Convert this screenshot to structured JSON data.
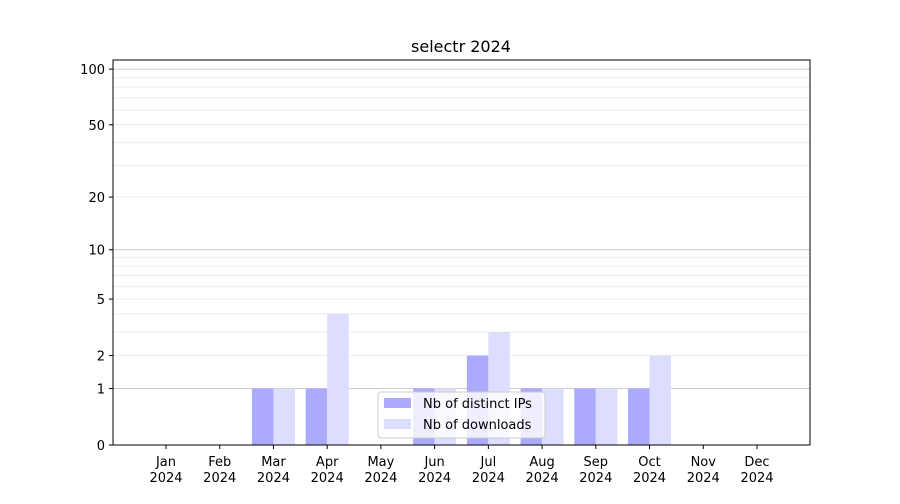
{
  "chart_data": {
    "type": "bar",
    "title": "selectr 2024",
    "xlabel": "",
    "ylabel": "",
    "yscale": "symlog (log10(1+y))",
    "ylim": [
      0,
      112
    ],
    "yticks": [
      0,
      1,
      2,
      5,
      10,
      20,
      50,
      100
    ],
    "grid": true,
    "legend_placement": "bottom-center",
    "categories": [
      [
        "Jan",
        "2024"
      ],
      [
        "Feb",
        "2024"
      ],
      [
        "Mar",
        "2024"
      ],
      [
        "Apr",
        "2024"
      ],
      [
        "May",
        "2024"
      ],
      [
        "Jun",
        "2024"
      ],
      [
        "Jul",
        "2024"
      ],
      [
        "Aug",
        "2024"
      ],
      [
        "Sep",
        "2024"
      ],
      [
        "Oct",
        "2024"
      ],
      [
        "Nov",
        "2024"
      ],
      [
        "Dec",
        "2024"
      ]
    ],
    "series": [
      {
        "name": "Nb of distinct IPs",
        "color": "#aaaaff",
        "values": [
          0,
          0,
          1,
          1,
          0,
          1,
          2,
          1,
          1,
          1,
          0,
          0
        ]
      },
      {
        "name": "Nb of downloads",
        "color": "#ddddff",
        "values": [
          0,
          0,
          1,
          4,
          0,
          1,
          3,
          1,
          1,
          2,
          0,
          0
        ]
      }
    ]
  }
}
